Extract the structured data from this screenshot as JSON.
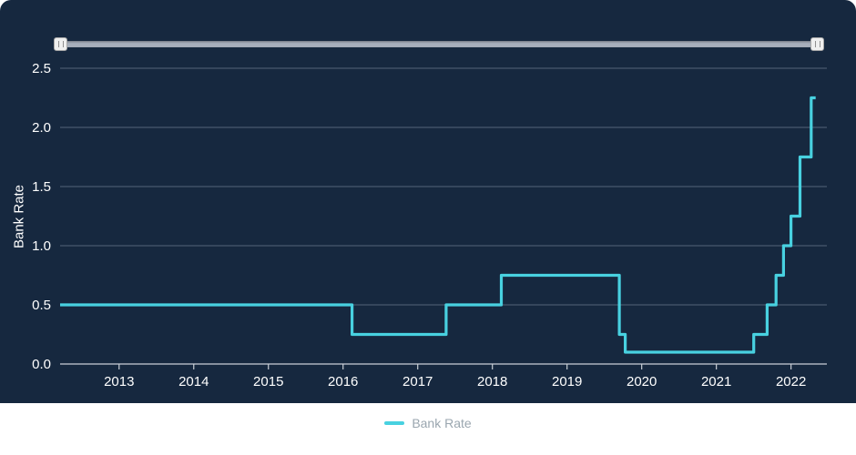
{
  "colors": {
    "page_bg": "#FFFFFF",
    "panel_bg": "#16283F",
    "line": "#48D1E0",
    "grid": "#54657A",
    "axis": "#C9CFD6",
    "tick_text": "#FFFFFF",
    "legend_text": "#9AA6AF",
    "slider_track": "#A7AFBC",
    "slider_handle": "#EFEFEF",
    "slider_handle_border": "#A8A8A8"
  },
  "icons": {
    "slider_grip": "||"
  },
  "chart_data": {
    "type": "line",
    "step": true,
    "title": "",
    "xlabel": "",
    "ylabel": "Bank Rate",
    "xlim": [
      2012.21,
      2022.48
    ],
    "ylim": [
      0,
      2.5
    ],
    "x_ticks": [
      2013,
      2014,
      2015,
      2016,
      2017,
      2018,
      2019,
      2020,
      2021,
      2022
    ],
    "y_ticks": [
      "0.0",
      "0.5",
      "1.0",
      "1.5",
      "2.0",
      "2.5"
    ],
    "y_tick_values": [
      0,
      0.5,
      1.0,
      1.5,
      2.0,
      2.5
    ],
    "grid": "horizontal",
    "legend_position": "bottom-center",
    "legend": [
      {
        "label": "Bank Rate",
        "color": "#48D1E0"
      }
    ],
    "series": [
      {
        "name": "Bank Rate",
        "color": "#48D1E0",
        "points": [
          [
            2012.21,
            0.5
          ],
          [
            2016.12,
            0.5
          ],
          [
            2016.12,
            0.25
          ],
          [
            2017.38,
            0.25
          ],
          [
            2017.38,
            0.5
          ],
          [
            2018.12,
            0.5
          ],
          [
            2018.12,
            0.75
          ],
          [
            2019.7,
            0.75
          ],
          [
            2019.7,
            0.25
          ],
          [
            2019.78,
            0.25
          ],
          [
            2019.78,
            0.1
          ],
          [
            2021.5,
            0.1
          ],
          [
            2021.5,
            0.25
          ],
          [
            2021.68,
            0.25
          ],
          [
            2021.68,
            0.5
          ],
          [
            2021.8,
            0.5
          ],
          [
            2021.8,
            0.75
          ],
          [
            2021.9,
            0.75
          ],
          [
            2021.9,
            1.0
          ],
          [
            2022.0,
            1.0
          ],
          [
            2022.0,
            1.25
          ],
          [
            2022.12,
            1.25
          ],
          [
            2022.12,
            1.75
          ],
          [
            2022.27,
            1.75
          ],
          [
            2022.27,
            2.25
          ],
          [
            2022.33,
            2.25
          ]
        ]
      }
    ]
  }
}
